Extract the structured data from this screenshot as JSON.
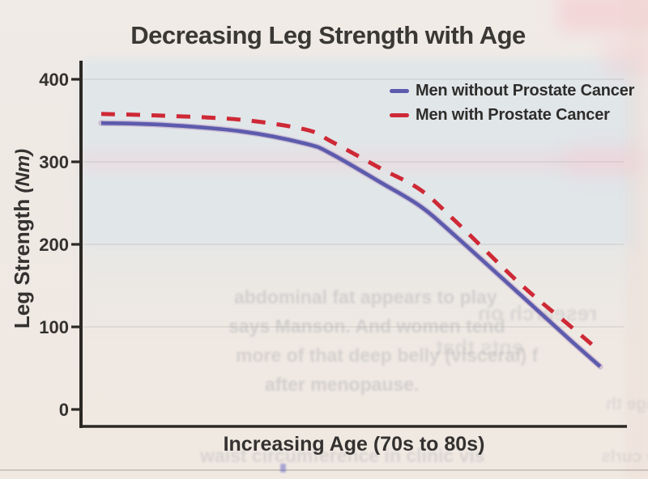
{
  "title": "Decreasing Leg Strength with Age",
  "y_axis": {
    "label": "Leg Strength",
    "unit": "(Nm)",
    "ticks": [
      400,
      300,
      200,
      100,
      0
    ]
  },
  "x_axis": {
    "label": "Increasing Age (70s to 80s)"
  },
  "legend": [
    {
      "label": "Men without Prostate Cancer",
      "color": "#5c5bad",
      "style": "solid"
    },
    {
      "label": "Men with Prostate Cancer",
      "color": "#ce2936",
      "style": "dashed"
    }
  ],
  "colors": {
    "paper": "#efe9e4",
    "plot_tint": "#e1e6e9",
    "axis": "#2b2824",
    "text": "#343230",
    "series_without": "#5c5bad",
    "series_with": "#ce2936"
  },
  "chart_data": {
    "type": "line",
    "title": "Decreasing Leg Strength with Age",
    "xlabel": "Increasing Age (70s to 80s)",
    "ylabel": "Leg Strength (Nm)",
    "ylim": [
      0,
      400
    ],
    "yticks": [
      400,
      300,
      200,
      100,
      0
    ],
    "x_range": [
      0,
      1
    ],
    "x_note": "x axis has no numeric ticks; it represents increasing age from 70s to 80s",
    "grid": "faint horizontal lines at 100-unit intervals",
    "legend_position": "top-right inside plot",
    "series": [
      {
        "name": "Men without Prostate Cancer",
        "color": "#5c5bad",
        "line_style": "solid",
        "points": [
          [
            0,
            347
          ],
          [
            0.12,
            345
          ],
          [
            0.28,
            337
          ],
          [
            0.41,
            322
          ],
          [
            0.46,
            310
          ],
          [
            0.56,
            275
          ],
          [
            0.64,
            246
          ],
          [
            0.71,
            210
          ],
          [
            0.84,
            139
          ],
          [
            0.94,
            84
          ],
          [
            1,
            52
          ]
        ]
      },
      {
        "name": "Men with Prostate Cancer",
        "color": "#ce2936",
        "line_style": "dashed",
        "points": [
          [
            0,
            358
          ],
          [
            0.12,
            356
          ],
          [
            0.28,
            351
          ],
          [
            0.41,
            339
          ],
          [
            0.46,
            325
          ],
          [
            0.56,
            292
          ],
          [
            0.64,
            266
          ],
          [
            0.71,
            228
          ],
          [
            0.84,
            152
          ],
          [
            0.94,
            101
          ],
          [
            1,
            70
          ]
        ]
      }
    ]
  },
  "artifacts": {
    "show_through": [
      "abdominal fat appears to play",
      "says Manson. And women tend",
      "more of that deep belly (visceral) f",
      "after menopause.",
      "waist circumference in clinic vis",
      "research on",
      "ents that",
      "nge th",
      "e curls"
    ]
  }
}
